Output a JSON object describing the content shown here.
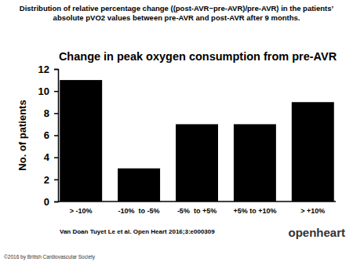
{
  "chart_data": {
    "type": "bar",
    "title": "Change in peak oxygen consumption from pre-AVR",
    "y_label": "No. of patients",
    "categories": [
      "> -10%",
      "-10%  to -5%",
      "-5%  to +5%",
      "+5% to +10%",
      "> +10%"
    ],
    "values": [
      11,
      3,
      7,
      7,
      9
    ],
    "color": "#000000",
    "ylim": [
      0,
      12
    ],
    "yticks": [
      0,
      2,
      4,
      6,
      8,
      10,
      12
    ],
    "grid": false
  },
  "slide": {
    "heading": [
      "Distribution of relative percentage change ((post-AVR−pre-AVR)/pre-AVR) in the patients’",
      "absolute pVO2 values between pre-AVR and post-AVR after 9 months."
    ],
    "citation": "Van Doan Tuyet Le et al. Open Heart 2016;3:e000309",
    "copyright": "©2016 by British Cardiovascular Society",
    "logo": "openheart"
  }
}
